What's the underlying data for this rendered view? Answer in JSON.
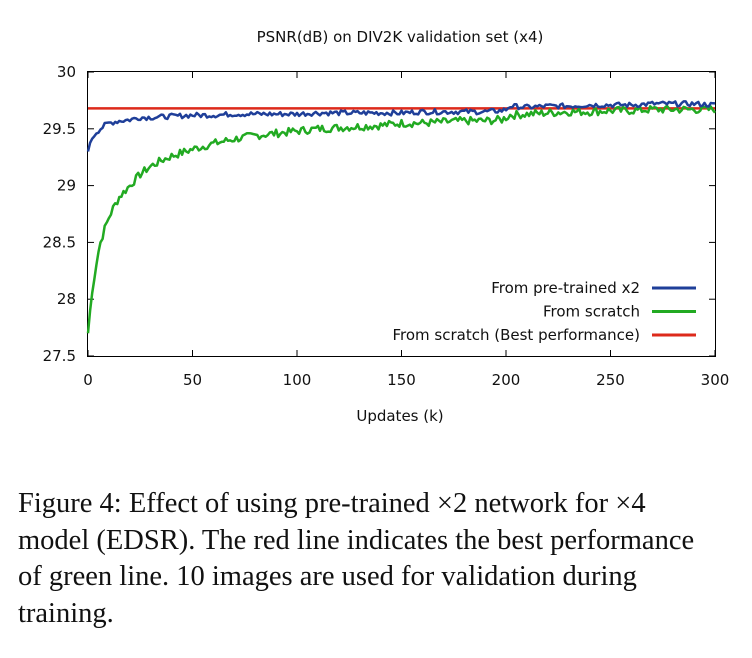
{
  "chart_data": {
    "type": "line",
    "title": "PSNR(dB) on DIV2K validation set (x4)",
    "xlabel": "Updates (k)",
    "ylabel": "",
    "xlim": [
      0,
      300
    ],
    "ylim": [
      27.5,
      30
    ],
    "xticks": [
      "0",
      "50",
      "100",
      "150",
      "200",
      "250",
      "300"
    ],
    "yticks": [
      "27.5",
      "28",
      "28.5",
      "29",
      "29.5",
      "30"
    ],
    "grid": false,
    "legend_position": "bottom-right",
    "series": [
      {
        "name": "From pre-trained x2",
        "color": "#1f3f99",
        "x": [
          0,
          2,
          4,
          6,
          8,
          10,
          15,
          20,
          25,
          30,
          40,
          50,
          60,
          70,
          80,
          90,
          100,
          110,
          120,
          130,
          140,
          150,
          160,
          170,
          180,
          190,
          198,
          200,
          202,
          210,
          220,
          230,
          240,
          250,
          260,
          270,
          280,
          290,
          300
        ],
        "y": [
          29.3,
          29.42,
          29.47,
          29.5,
          29.53,
          29.55,
          29.57,
          29.58,
          29.6,
          29.6,
          29.61,
          29.62,
          29.62,
          29.63,
          29.63,
          29.63,
          29.63,
          29.64,
          29.64,
          29.64,
          29.64,
          29.64,
          29.65,
          29.65,
          29.65,
          29.65,
          29.66,
          29.67,
          29.7,
          29.69,
          29.7,
          29.7,
          29.71,
          29.71,
          29.71,
          29.72,
          29.72,
          29.72,
          29.71
        ]
      },
      {
        "name": "From scratch",
        "color": "#22aa22",
        "x": [
          0,
          1,
          2,
          3,
          4,
          5,
          6,
          8,
          10,
          12,
          15,
          20,
          25,
          30,
          35,
          40,
          50,
          60,
          70,
          80,
          90,
          100,
          110,
          120,
          130,
          140,
          150,
          160,
          170,
          180,
          190,
          198,
          200,
          202,
          210,
          220,
          230,
          240,
          250,
          260,
          270,
          280,
          290,
          300
        ],
        "y": [
          27.7,
          27.9,
          28.05,
          28.2,
          28.32,
          28.42,
          28.5,
          28.62,
          28.72,
          28.8,
          28.9,
          29.0,
          29.1,
          29.17,
          29.22,
          29.26,
          29.32,
          29.37,
          29.41,
          29.44,
          29.46,
          29.48,
          29.5,
          29.51,
          29.52,
          29.53,
          29.55,
          29.55,
          29.56,
          29.57,
          29.57,
          29.58,
          29.6,
          29.62,
          29.63,
          29.64,
          29.65,
          29.65,
          29.66,
          29.66,
          29.67,
          29.67,
          29.67,
          29.67
        ]
      },
      {
        "name": "From scratch (Best performance)",
        "color": "#dd2a1b",
        "x": [
          0,
          300
        ],
        "y": [
          29.68,
          29.68
        ]
      }
    ]
  },
  "caption": {
    "line1": "Figure 4: Effect of using pre-trained ×2 network for ×4",
    "line2": "model (EDSR). The red line indicates the best performance",
    "line3": "of green line. 10 images are used for validation during",
    "line4": "training."
  }
}
